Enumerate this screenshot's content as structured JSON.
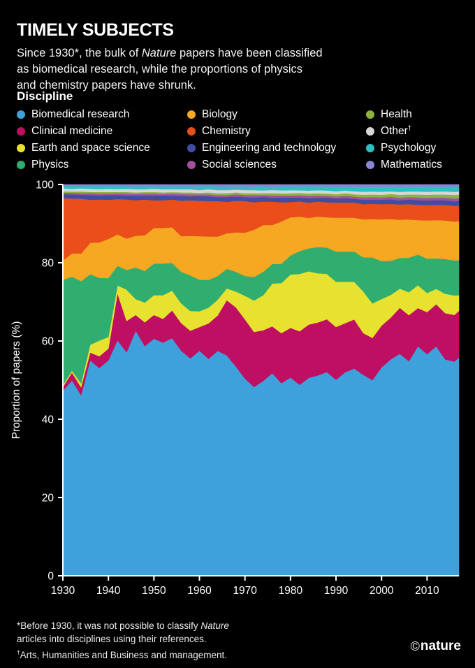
{
  "title": "TIMELY SUBJECTS",
  "subtitle_segments": [
    {
      "t": "Since 1930*, the bulk of "
    },
    {
      "t": "Nature",
      "i": true
    },
    {
      "t": " papers have been classified"
    },
    {
      "br": true
    },
    {
      "t": "as biomedical research, while the proportions of physics"
    },
    {
      "br": true
    },
    {
      "t": "and chemistry papers have shrunk."
    }
  ],
  "legend": {
    "heading": "Discipline"
  },
  "chart_data": {
    "type": "area",
    "stacked": true,
    "title": "",
    "ylabel": "Proportion of papers (%)",
    "ylim": [
      0,
      100
    ],
    "yticks": [
      0,
      20,
      40,
      60,
      80,
      100
    ],
    "xticks": [
      1930,
      1940,
      1950,
      1960,
      1970,
      1980,
      1990,
      2000,
      2010
    ],
    "x": [
      1930,
      1932,
      1934,
      1936,
      1938,
      1940,
      1942,
      1944,
      1946,
      1948,
      1950,
      1952,
      1954,
      1956,
      1958,
      1960,
      1962,
      1964,
      1966,
      1968,
      1970,
      1972,
      1974,
      1976,
      1978,
      1980,
      1982,
      1984,
      1986,
      1988,
      1990,
      1992,
      1994,
      1996,
      1998,
      2000,
      2002,
      2004,
      2006,
      2008,
      2010,
      2012,
      2014,
      2016,
      2017
    ],
    "series": [
      {
        "name": "Biomedical research",
        "color": "#3fa1db",
        "values": [
          47.5,
          50,
          46,
          55,
          53,
          55,
          60,
          57,
          62,
          58,
          60,
          59,
          60,
          57,
          55,
          57,
          55,
          57,
          56,
          53,
          50,
          48,
          50,
          52,
          50,
          52,
          50,
          52,
          53,
          54,
          52,
          54,
          55,
          53,
          51,
          55,
          57,
          58,
          56,
          60,
          58,
          60,
          56,
          55,
          56
        ]
      },
      {
        "name": "Clinical medicine",
        "color": "#bf0f63",
        "values": [
          1,
          2,
          2,
          2,
          3,
          3,
          12,
          8,
          4,
          6,
          6,
          6,
          7,
          7,
          7,
          6,
          9,
          9,
          14,
          15,
          15,
          14,
          13,
          12,
          13,
          13,
          14,
          14,
          14,
          14,
          14,
          13,
          13,
          11,
          11,
          11,
          11,
          12,
          12,
          10,
          11,
          11,
          12,
          12,
          12
        ]
      },
      {
        "name": "Earth and space science",
        "color": "#e7e12f",
        "values": [
          0.5,
          0.5,
          1,
          2,
          4,
          3,
          2,
          8,
          4,
          5,
          5,
          6,
          5,
          5,
          5,
          4,
          4,
          4,
          3,
          4,
          6,
          8,
          9,
          11,
          13,
          14,
          15,
          14,
          13,
          12,
          12,
          11,
          10,
          11,
          9,
          7,
          6,
          5,
          6,
          6,
          5,
          4,
          5,
          5,
          4
        ]
      },
      {
        "name": "Physics",
        "color": "#2fae70",
        "values": [
          27,
          24,
          26,
          18,
          16,
          15,
          5,
          5,
          8,
          8,
          8,
          8,
          7,
          8,
          9,
          8,
          7,
          6,
          5,
          5,
          5,
          6,
          6,
          5,
          5,
          5,
          6,
          6,
          7,
          7,
          8,
          8,
          8,
          9,
          12,
          10,
          9,
          8,
          9,
          8,
          9,
          8,
          9,
          9,
          9
        ]
      },
      {
        "name": "Biology",
        "color": "#f7a823",
        "values": [
          5,
          6,
          7,
          8,
          9,
          10,
          8,
          8,
          8,
          9,
          9,
          9,
          9,
          9,
          10,
          11,
          11,
          10,
          9,
          10,
          11,
          12,
          12,
          10,
          11,
          10,
          9,
          8,
          8,
          8,
          9,
          9,
          9,
          10,
          10,
          11,
          11,
          10,
          10,
          9,
          10,
          10,
          10,
          10,
          10
        ]
      },
      {
        "name": "Chemistry",
        "color": "#e94e1b",
        "values": [
          16,
          14,
          14,
          11,
          11,
          10,
          9,
          10,
          9,
          9,
          7,
          7,
          7,
          9,
          9,
          9,
          9,
          9,
          8,
          8,
          8,
          7,
          6,
          6,
          5,
          4,
          4,
          4,
          4,
          4,
          4,
          4,
          4,
          4,
          4,
          4,
          4,
          4,
          4,
          4,
          4,
          4,
          4,
          4,
          4
        ]
      },
      {
        "name": "Engineering and technology",
        "color": "#3e4fa3",
        "values": [
          1,
          1,
          1,
          1.2,
          1,
          1.2,
          1,
          1,
          1.2,
          1,
          1.2,
          1.2,
          1,
          1.2,
          1,
          1.2,
          1.2,
          1,
          1.2,
          1,
          1,
          1.2,
          1.2,
          1,
          1.2,
          1.2,
          1,
          1.2,
          1,
          1.2,
          1,
          1.2,
          1,
          1.2,
          1,
          1.2,
          1.2,
          1,
          1.2,
          1.2,
          1.2,
          1.2,
          1.2,
          1.2,
          1.2
        ]
      },
      {
        "name": "Social sciences",
        "color": "#a3519e",
        "values": [
          0.4,
          0.5,
          0.4,
          0.5,
          0.5,
          0.4,
          0.5,
          0.5,
          0.4,
          0.5,
          0.5,
          0.4,
          0.5,
          0.5,
          0.5,
          0.4,
          0.5,
          0.5,
          0.5,
          0.6,
          0.5,
          0.6,
          0.5,
          0.6,
          0.6,
          0.5,
          0.6,
          0.6,
          0.6,
          0.5,
          0.6,
          0.6,
          0.6,
          0.6,
          0.7,
          0.6,
          0.7,
          0.7,
          0.6,
          0.7,
          0.7,
          0.7,
          0.7,
          0.7,
          0.7
        ]
      },
      {
        "name": "Health",
        "color": "#8bb43f",
        "values": [
          0.3,
          0.3,
          0.4,
          0.3,
          0.4,
          0.4,
          0.3,
          0.4,
          0.4,
          0.4,
          0.4,
          0.4,
          0.4,
          0.4,
          0.5,
          0.4,
          0.5,
          0.5,
          0.5,
          0.5,
          0.5,
          0.5,
          0.5,
          0.6,
          0.5,
          0.6,
          0.6,
          0.6,
          0.6,
          0.6,
          0.6,
          0.7,
          0.6,
          0.7,
          0.7,
          0.7,
          0.7,
          0.8,
          0.7,
          0.8,
          0.8,
          0.8,
          0.8,
          0.9,
          0.9
        ]
      },
      {
        "name": "Other",
        "legend_suffix_sup": "†",
        "color": "#d6d6d6",
        "values": [
          0.8,
          0.7,
          0.8,
          0.8,
          0.7,
          0.8,
          0.7,
          0.8,
          0.8,
          0.7,
          0.8,
          0.8,
          0.7,
          0.8,
          0.8,
          0.7,
          0.8,
          0.8,
          0.8,
          0.7,
          0.8,
          0.8,
          0.7,
          0.8,
          0.8,
          0.8,
          0.7,
          0.8,
          0.8,
          0.8,
          0.8,
          0.7,
          0.8,
          0.8,
          0.8,
          0.8,
          0.7,
          0.8,
          0.8,
          0.8,
          0.8,
          0.8,
          0.8,
          0.8,
          0.8
        ]
      },
      {
        "name": "Psychology",
        "color": "#31bec2",
        "values": [
          0.6,
          0.7,
          0.6,
          0.7,
          0.8,
          0.7,
          0.8,
          0.7,
          0.8,
          0.8,
          0.7,
          0.8,
          0.8,
          0.7,
          0.8,
          0.9,
          0.8,
          0.9,
          0.9,
          0.8,
          0.9,
          0.9,
          1,
          0.9,
          1,
          1,
          1,
          1.1,
          1,
          1.1,
          1.2,
          1.1,
          1.2,
          1.3,
          1.2,
          1.3,
          1.2,
          1.3,
          1.2,
          1.2,
          1.3,
          1.2,
          1.2,
          1.3,
          1.2
        ]
      },
      {
        "name": "Mathematics",
        "color": "#8c85d6",
        "values": [
          0.4,
          0.4,
          0.4,
          0.4,
          0.4,
          0.4,
          0.4,
          0.4,
          0.4,
          0.4,
          0.4,
          0.4,
          0.4,
          0.5,
          0.4,
          0.5,
          0.4,
          0.5,
          0.5,
          0.5,
          0.5,
          0.5,
          0.5,
          0.5,
          0.5,
          0.5,
          0.5,
          0.5,
          0.5,
          0.5,
          0.6,
          0.5,
          0.6,
          0.6,
          0.6,
          0.6,
          0.6,
          0.6,
          0.6,
          0.6,
          0.6,
          0.6,
          0.6,
          0.6,
          0.6
        ]
      }
    ]
  },
  "footnotes": {
    "asterisk": [
      {
        "t": "*Before 1930, it was not possible to classify "
      },
      {
        "t": "Nature",
        "i": true
      },
      {
        "br": true
      },
      {
        "t": "articles into disciplines using their references."
      }
    ],
    "dagger": [
      {
        "t": "†",
        "sup": true
      },
      {
        "t": "Arts, Humanities and Business and management."
      }
    ]
  },
  "branding": {
    "symbol": "©",
    "name": "nature"
  }
}
